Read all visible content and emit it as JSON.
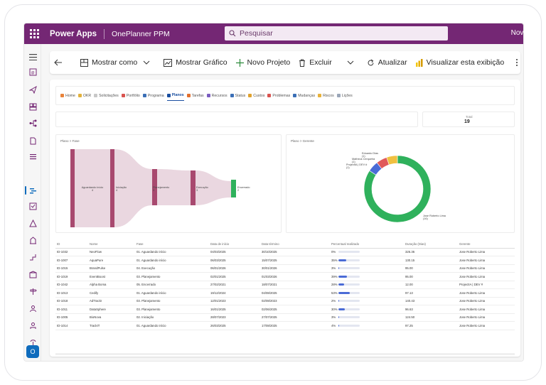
{
  "header": {
    "app_name": "Power Apps",
    "env_name": "OnePlanner PPM",
    "search_placeholder": "Pesquisar",
    "new_label": "Nova"
  },
  "commands": {
    "show_as": "Mostrar como",
    "show_chart": "Mostrar Gráfico",
    "new_project": "Novo Projeto",
    "delete": "Excluir",
    "refresh": "Atualizar",
    "view_report": "Visualizar esta exibição"
  },
  "tabs": [
    {
      "label": "Home",
      "color": "#e8833a"
    },
    {
      "label": "OKR",
      "color": "#e2b13c"
    },
    {
      "label": "Solicitações",
      "color": "#c8c8c8"
    },
    {
      "label": "Portfólio",
      "color": "#d9534f"
    },
    {
      "label": "Programa",
      "color": "#3b6fb6"
    },
    {
      "label": "Planos",
      "color": "#1a4fa0"
    },
    {
      "label": "Tarefas",
      "color": "#e26f2e"
    },
    {
      "label": "Recursos",
      "color": "#7a5cc0"
    },
    {
      "label": "Status",
      "color": "#3b6fb6"
    },
    {
      "label": "Custos",
      "color": "#e0a22e"
    },
    {
      "label": "Problemas",
      "color": "#d9534f"
    },
    {
      "label": "Mudanças",
      "color": "#3b6fb6"
    },
    {
      "label": "Riscos",
      "color": "#e8b23a"
    },
    {
      "label": "Lições",
      "color": "#9aa6b8"
    }
  ],
  "kpi": {
    "label": "Total",
    "value": "19"
  },
  "sankey": {
    "title": "Plano > Fase",
    "labels": [
      "Aguardando início",
      "Iniciação",
      "Planejamento",
      "Execução",
      "Encerrado"
    ],
    "values": [
      "4",
      "4",
      "3",
      "3",
      "2"
    ]
  },
  "donut": {
    "title": "Plano > Gerente",
    "labels": [
      "Eduardo Dias",
      "(1)",
      "Matheus Cerqueira",
      "(1)",
      "ProjectIA | DEV #",
      "(1)",
      "Jose Roberto Lima",
      "(16)"
    ]
  },
  "chart_data": {
    "type": "pie",
    "title": "Plano > Gerente",
    "categories": [
      "Jose Roberto Lima",
      "ProjectIA | DEV #",
      "Matheus Cerqueira",
      "Eduardo Dias"
    ],
    "values": [
      16,
      1,
      1,
      1
    ],
    "colors": [
      "#2fb15c",
      "#4a6bd6",
      "#e05a5a",
      "#f0c040"
    ]
  },
  "table": {
    "headers": [
      "ID",
      "Nome",
      "Fase",
      "Data de início",
      "Data término",
      "Percentual realizado",
      "Duração (Dias)",
      "Gerente"
    ],
    "rows": [
      {
        "id": "ID-1032",
        "name": "NeoFlow",
        "phase": "01. Aguardando início",
        "start": "04/03/2025",
        "end": "30/10/2025",
        "pct": "0%",
        "pv": 0,
        "dur": "326.36",
        "mgr": "Jose Roberto Lima"
      },
      {
        "id": "ID-1007",
        "name": "AquaPure",
        "phase": "01. Aguardando início",
        "start": "06/03/2025",
        "end": "15/07/2025",
        "pct": "35%",
        "pv": 35,
        "dur": "130.15",
        "mgr": "Jose Roberto Lima"
      },
      {
        "id": "ID-1015",
        "name": "BrandPulse",
        "phase": "04. Execução",
        "start": "06/01/2026",
        "end": "30/01/2026",
        "pct": "3%",
        "pv": 3,
        "dur": "95.00",
        "mgr": "Jose Roberto Lima"
      },
      {
        "id": "ID-1019",
        "name": "EventBoost",
        "phase": "03. Planejamento",
        "start": "02/01/2025",
        "end": "01/03/2026",
        "pct": "39%",
        "pv": 39,
        "dur": "95.00",
        "mgr": "Jose Roberto Lima"
      },
      {
        "id": "ID-1042",
        "name": "Alpha Boma",
        "phase": "05. Encerrado",
        "start": "27/02/2021",
        "end": "18/07/2021",
        "pct": "28%",
        "pv": 28,
        "dur": "12.00",
        "mgr": "ProjectIA | DEV #"
      },
      {
        "id": "ID-1013",
        "name": "Cedify",
        "phase": "01. Aguardando início",
        "start": "19/12/2024",
        "end": "04/08/2025",
        "pct": "53%",
        "pv": 53,
        "dur": "97.13",
        "mgr": "Jose Roberto Lima"
      },
      {
        "id": "ID-1018",
        "name": "AdTrackr",
        "phase": "03. Planejamento",
        "start": "12/01/2023",
        "end": "02/08/2023",
        "pct": "2%",
        "pv": 2,
        "dur": "140.43",
        "mgr": "Jose Roberto Lima"
      },
      {
        "id": "ID-1011",
        "name": "DataSphere",
        "phase": "03. Planejamento",
        "start": "16/01/2025",
        "end": "02/06/2025",
        "pct": "30%",
        "pv": 30,
        "dur": "96.63",
        "mgr": "Jose Roberto Lima"
      },
      {
        "id": "ID-1005",
        "name": "BioNova",
        "phase": "02. Iniciação",
        "start": "28/07/2023",
        "end": "27/07/2025",
        "pct": "3%",
        "pv": 3,
        "dur": "124.50",
        "mgr": "Jose Roberto Lima"
      },
      {
        "id": "ID-1014",
        "name": "TrackIT",
        "phase": "01. Aguardando início",
        "start": "26/03/2025",
        "end": "17/08/2025",
        "pct": "4%",
        "pv": 4,
        "dur": "97.25",
        "mgr": "Jose Roberto Lima"
      }
    ]
  }
}
